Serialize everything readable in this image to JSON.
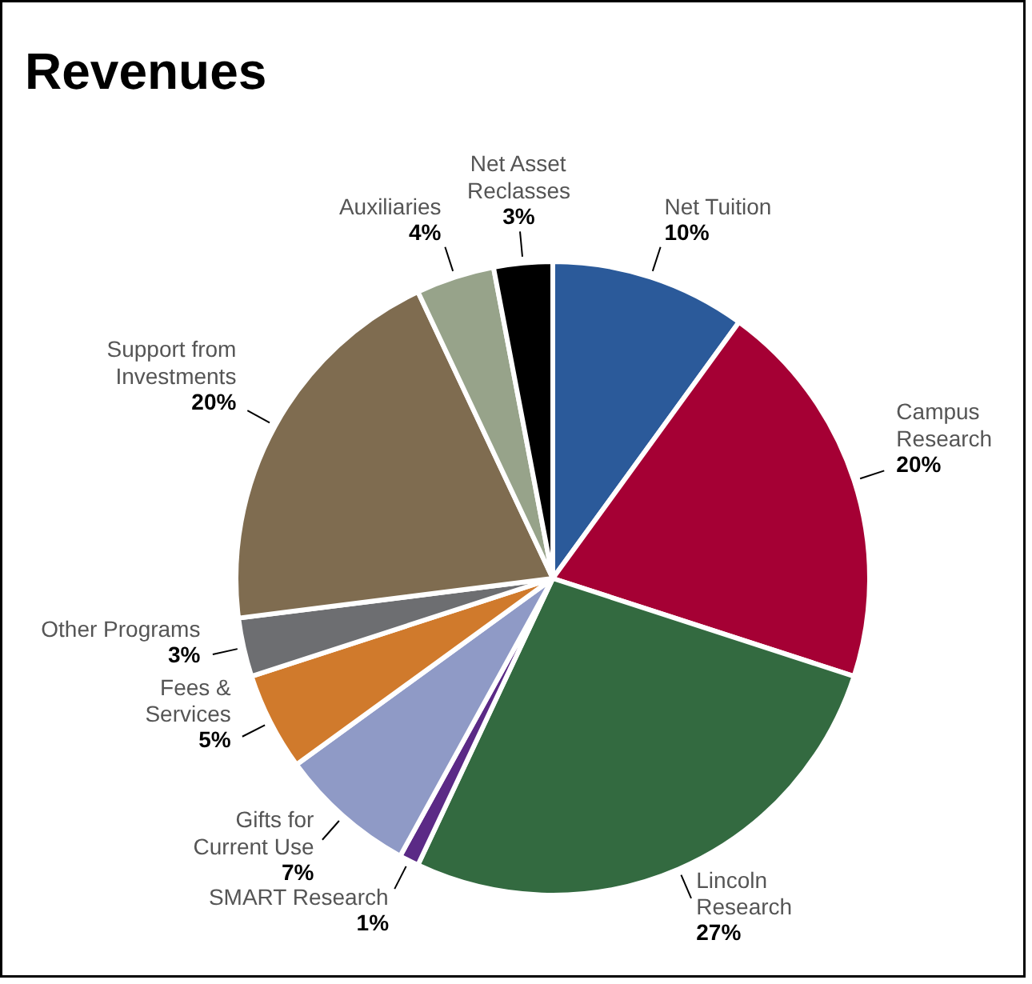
{
  "chart_data": {
    "type": "pie",
    "title": "Revenues",
    "categories": [
      "Net Tuition",
      "Campus Research",
      "Lincoln Research",
      "SMART Research",
      "Gifts for Current Use",
      "Fees & Services",
      "Other Programs",
      "Support from Investments",
      "Auxiliaries",
      "Net Asset Reclasses"
    ],
    "values": [
      10,
      20,
      27,
      1,
      7,
      5,
      3,
      20,
      4,
      3
    ],
    "value_labels": [
      "10%",
      "20%",
      "27%",
      "1%",
      "7%",
      "5%",
      "3%",
      "20%",
      "4%",
      "3%"
    ],
    "colors": [
      "#2b5a9a",
      "#a50034",
      "#336a40",
      "#5b2a86",
      "#8f9ac6",
      "#d07a2c",
      "#6d6e71",
      "#7f6c50",
      "#97a38a",
      "#000000"
    ]
  }
}
